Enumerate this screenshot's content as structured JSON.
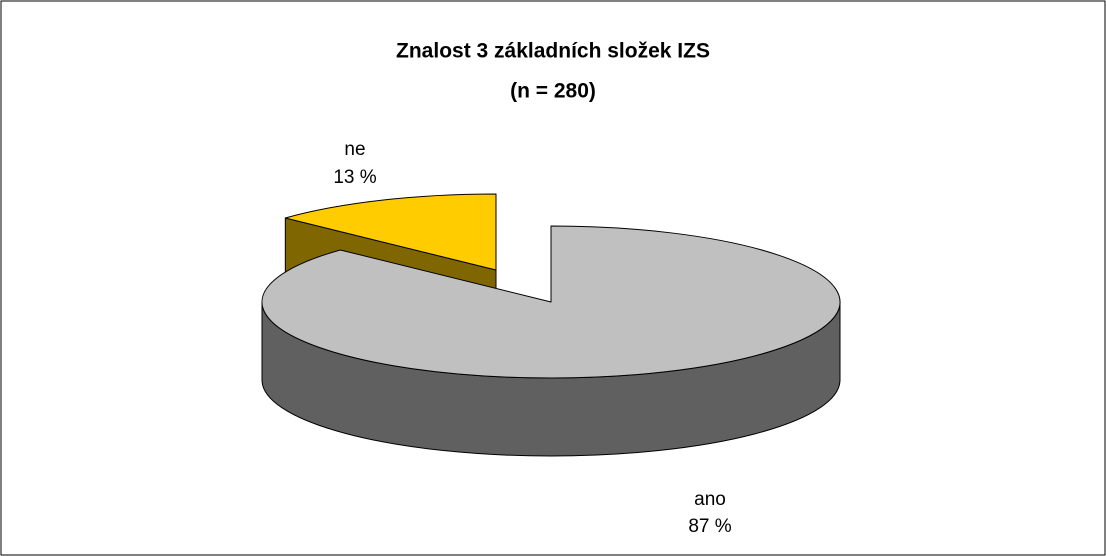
{
  "chart_data": {
    "type": "pie",
    "title": "Znalost 3 základních složek IZS",
    "subtitle": "(n = 280)",
    "categories": [
      "ano",
      "ne"
    ],
    "values": [
      87,
      13
    ],
    "value_labels": [
      "87 %",
      "13 %"
    ],
    "colors": [
      "#c0c0c0",
      "#ffcc00"
    ],
    "side_colors": [
      "#606060",
      "#806600"
    ],
    "exploded": [
      false,
      true
    ]
  }
}
